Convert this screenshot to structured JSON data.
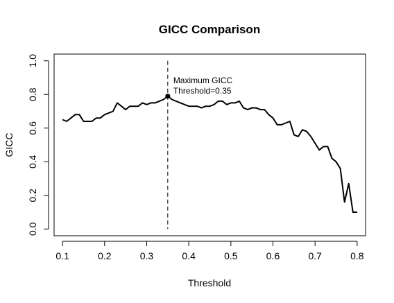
{
  "chart_data": {
    "type": "line",
    "title": "GICC Comparison",
    "xlabel": "Threshold",
    "ylabel": "GICC",
    "xlim": [
      0.08,
      0.82
    ],
    "ylim": [
      -0.04,
      1.04
    ],
    "x_ticks": [
      0.1,
      0.2,
      0.3,
      0.4,
      0.5,
      0.6,
      0.7,
      0.8
    ],
    "x_tick_labels": [
      "0.1",
      "0.2",
      "0.3",
      "0.4",
      "0.5",
      "0.6",
      "0.7",
      "0.8"
    ],
    "y_ticks": [
      0.0,
      0.2,
      0.4,
      0.6,
      0.8,
      1.0
    ],
    "y_tick_labels": [
      "0.0",
      "0.2",
      "0.4",
      "0.6",
      "0.8",
      "1.0"
    ],
    "grid": false,
    "series": [
      {
        "color": "#000000",
        "x": [
          0.1,
          0.11,
          0.12,
          0.13,
          0.14,
          0.15,
          0.16,
          0.17,
          0.18,
          0.19,
          0.2,
          0.21,
          0.22,
          0.23,
          0.24,
          0.25,
          0.26,
          0.27,
          0.28,
          0.29,
          0.3,
          0.31,
          0.32,
          0.33,
          0.34,
          0.35,
          0.36,
          0.37,
          0.38,
          0.39,
          0.4,
          0.41,
          0.42,
          0.43,
          0.44,
          0.45,
          0.46,
          0.47,
          0.48,
          0.49,
          0.5,
          0.51,
          0.52,
          0.53,
          0.54,
          0.55,
          0.56,
          0.57,
          0.58,
          0.59,
          0.6,
          0.61,
          0.62,
          0.63,
          0.64,
          0.65,
          0.66,
          0.67,
          0.68,
          0.69,
          0.7,
          0.71,
          0.72,
          0.73,
          0.74,
          0.75,
          0.76,
          0.77,
          0.78,
          0.79,
          0.8
        ],
        "y": [
          0.65,
          0.64,
          0.66,
          0.68,
          0.68,
          0.64,
          0.64,
          0.64,
          0.66,
          0.66,
          0.68,
          0.69,
          0.7,
          0.75,
          0.73,
          0.71,
          0.73,
          0.73,
          0.73,
          0.75,
          0.74,
          0.75,
          0.75,
          0.76,
          0.77,
          0.79,
          0.77,
          0.76,
          0.75,
          0.74,
          0.73,
          0.73,
          0.73,
          0.72,
          0.73,
          0.73,
          0.74,
          0.76,
          0.76,
          0.74,
          0.75,
          0.75,
          0.76,
          0.72,
          0.71,
          0.72,
          0.72,
          0.71,
          0.71,
          0.68,
          0.66,
          0.62,
          0.62,
          0.63,
          0.64,
          0.56,
          0.55,
          0.59,
          0.58,
          0.55,
          0.51,
          0.47,
          0.49,
          0.49,
          0.42,
          0.4,
          0.36,
          0.16,
          0.27,
          0.1,
          0.1
        ]
      }
    ],
    "max_point": {
      "x": 0.35,
      "y": 0.79
    },
    "vline_x": 0.35,
    "annotation": [
      "Maximum GICC",
      "Threshold=0.35"
    ]
  }
}
